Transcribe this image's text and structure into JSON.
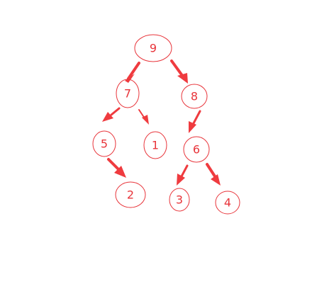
{
  "diagram": {
    "type": "binary-tree",
    "colors": {
      "node_outline": "#e8343a",
      "label": "#e8343a",
      "edge": "#ef3b3f"
    },
    "nodes": [
      {
        "id": "n9",
        "label": "9"
      },
      {
        "id": "n7",
        "label": "7"
      },
      {
        "id": "n8",
        "label": "8"
      },
      {
        "id": "n5",
        "label": "5"
      },
      {
        "id": "n1",
        "label": "1"
      },
      {
        "id": "n6",
        "label": "6"
      },
      {
        "id": "n2",
        "label": "2"
      },
      {
        "id": "n3",
        "label": "3"
      },
      {
        "id": "n4",
        "label": "4"
      }
    ],
    "edges": [
      {
        "from": "n9",
        "to": "n7"
      },
      {
        "from": "n9",
        "to": "n8"
      },
      {
        "from": "n7",
        "to": "n5"
      },
      {
        "from": "n7",
        "to": "n1"
      },
      {
        "from": "n8",
        "to": "n6"
      },
      {
        "from": "n5",
        "to": "n2"
      },
      {
        "from": "n6",
        "to": "n3"
      },
      {
        "from": "n6",
        "to": "n4"
      }
    ]
  }
}
